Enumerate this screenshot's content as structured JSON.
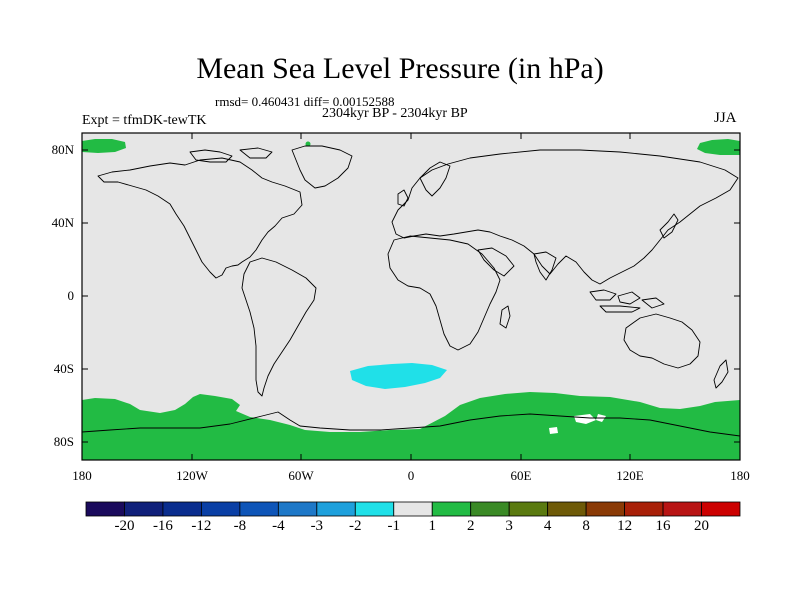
{
  "title": "Mean Sea Level Pressure (in hPa)",
  "stats": "rmsd= 0.460431 diff= 0.00152588",
  "period": "2304kyr BP - 2304kyr BP",
  "experiment": "Expt = tfmDK-tewTK",
  "season": "JJA",
  "lat_ticks": [
    "80N",
    "40N",
    "0",
    "40S",
    "80S"
  ],
  "lon_ticks": [
    "180",
    "120W",
    "60W",
    "0",
    "60E",
    "120E",
    "180"
  ],
  "colorbar": {
    "labels": [
      "-20",
      "-16",
      "-12",
      "-8",
      "-4",
      "-3",
      "-2",
      "-1",
      "1",
      "2",
      "3",
      "4",
      "8",
      "12",
      "16",
      "20"
    ],
    "colors": [
      "#1a0a5c",
      "#10207a",
      "#0a2d8e",
      "#0a3fa5",
      "#0e55b8",
      "#1e78c8",
      "#1ea0dc",
      "#20e0e8",
      "#e6e6e6",
      "#22bb44",
      "#3a8a26",
      "#5a7a10",
      "#6e5a08",
      "#8a3a06",
      "#a82008",
      "#b81414",
      "#cc0000"
    ]
  },
  "colors": {
    "neutral_fill": "#e6e6e6",
    "positive_fill": "#22bb44",
    "negative_fill": "#20e0e8"
  }
}
